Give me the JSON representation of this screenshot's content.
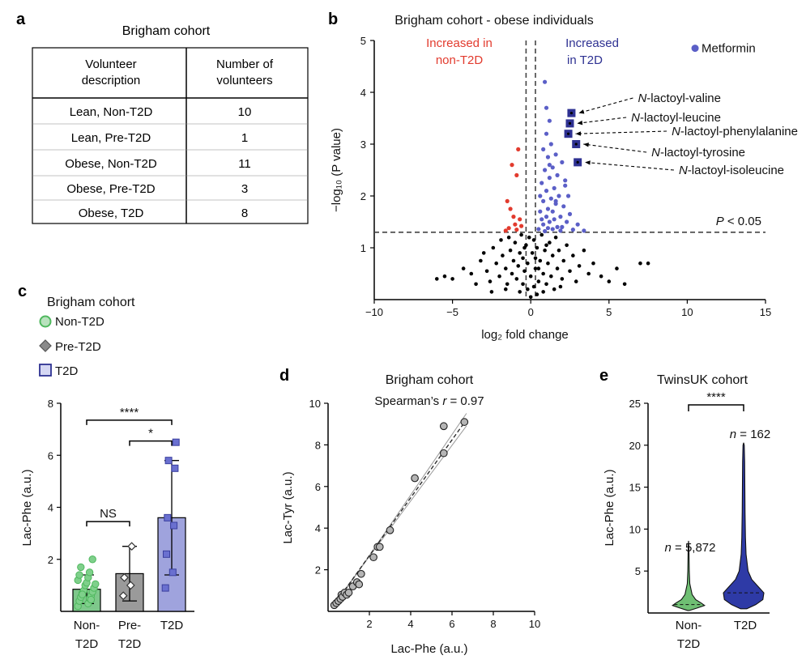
{
  "panels": {
    "a": {
      "label": "a",
      "title": "Brigham cohort",
      "table": {
        "headers": [
          [
            "Volunteer",
            "description"
          ],
          [
            "Number of",
            "volunteers"
          ]
        ],
        "rows": [
          [
            "Lean, Non-T2D",
            "10"
          ],
          [
            "Lean, Pre-T2D",
            "1"
          ],
          [
            "Obese, Non-T2D",
            "11"
          ],
          [
            "Obese, Pre-T2D",
            "3"
          ],
          [
            "Obese, T2D",
            "8"
          ]
        ]
      }
    },
    "b": {
      "label": "b"
    },
    "c": {
      "label": "c"
    },
    "d": {
      "label": "d"
    },
    "e": {
      "label": "e"
    }
  },
  "chart_data": [
    {
      "id": "b",
      "type": "scatter",
      "title": "Brigham cohort - obese individuals",
      "xlabel": "log₂ fold change",
      "ylabel": "−log₁₀ (P value)",
      "xlim": [
        -10,
        15
      ],
      "ylim": [
        0,
        5
      ],
      "xticks": [
        "−10",
        "−5",
        "0",
        "5",
        "10",
        "15"
      ],
      "xtick_values": [
        -10,
        -5,
        0,
        5,
        10,
        15
      ],
      "yticks": [
        "1",
        "2",
        "3",
        "4",
        "5"
      ],
      "ytick_values": [
        1,
        2,
        3,
        4,
        5
      ],
      "threshold_label": "P < 0.05",
      "threshold_y": 1.3,
      "vlines_x": [
        -0.3,
        0.3
      ],
      "region_labels": {
        "left": [
          "Increased in",
          "non-T2D"
        ],
        "right": [
          "Increased",
          "in T2D"
        ]
      },
      "legend": "Metformin",
      "colors": {
        "ns": "#000000",
        "up_t2d": "#5b5fc7",
        "up_nont2d": "#e23b2e",
        "highlight": "#2e3192"
      },
      "highlighted": [
        {
          "name": "N-lactoyl-valine",
          "prefix": "N",
          "rest": "-lactoyl-valine",
          "x": 2.6,
          "y": 3.6
        },
        {
          "name": "N-lactoyl-leucine",
          "prefix": "N",
          "rest": "-lactoyl-leucine",
          "x": 2.5,
          "y": 3.4
        },
        {
          "name": "N-lactoyl-phenylalanine",
          "prefix": "N",
          "rest": "-lactoyl-phenylalanine",
          "x": 2.4,
          "y": 3.2
        },
        {
          "name": "N-lactoyl-tyrosine",
          "prefix": "N",
          "rest": "-lactoyl-tyrosine",
          "x": 2.9,
          "y": 3.0
        },
        {
          "name": "N-lactoyl-isoleucine",
          "prefix": "N",
          "rest": "-lactoyl-isoleucine",
          "x": 3.0,
          "y": 2.65
        }
      ],
      "metformin": {
        "x": 10.5,
        "y": 4.85
      },
      "points_up_t2d": [
        [
          0.9,
          4.2
        ],
        [
          1.0,
          3.7
        ],
        [
          1.2,
          3.45
        ],
        [
          1.0,
          3.2
        ],
        [
          1.3,
          3.0
        ],
        [
          0.8,
          2.9
        ],
        [
          1.6,
          2.8
        ],
        [
          1.1,
          2.75
        ],
        [
          2.0,
          2.65
        ],
        [
          1.4,
          2.55
        ],
        [
          0.9,
          2.5
        ],
        [
          1.7,
          2.4
        ],
        [
          1.2,
          2.35
        ],
        [
          2.2,
          2.3
        ],
        [
          0.7,
          2.25
        ],
        [
          1.5,
          2.15
        ],
        [
          1.0,
          2.1
        ],
        [
          1.8,
          2.0
        ],
        [
          2.4,
          2.0
        ],
        [
          1.3,
          1.95
        ],
        [
          0.8,
          1.9
        ],
        [
          1.6,
          1.85
        ],
        [
          2.1,
          1.8
        ],
        [
          1.1,
          1.75
        ],
        [
          1.4,
          1.7
        ],
        [
          0.6,
          1.7
        ],
        [
          2.5,
          1.65
        ],
        [
          1.9,
          1.6
        ],
        [
          1.0,
          1.6
        ],
        [
          0.7,
          1.55
        ],
        [
          1.5,
          1.55
        ],
        [
          2.3,
          1.5
        ],
        [
          1.2,
          1.5
        ],
        [
          3.0,
          1.45
        ],
        [
          0.8,
          1.45
        ],
        [
          1.7,
          1.4
        ],
        [
          2.0,
          1.4
        ],
        [
          1.1,
          1.38
        ],
        [
          1.4,
          1.36
        ],
        [
          0.5,
          1.36
        ],
        [
          2.7,
          1.35
        ],
        [
          1.9,
          1.33
        ],
        [
          3.4,
          1.33
        ],
        [
          0.9,
          1.32
        ],
        [
          1.6,
          1.9
        ],
        [
          1.2,
          2.6
        ],
        [
          0.6,
          2.0
        ],
        [
          2.2,
          2.2
        ]
      ],
      "points_up_nont2d": [
        [
          -0.8,
          2.9
        ],
        [
          -1.2,
          2.6
        ],
        [
          -0.9,
          2.4
        ],
        [
          -1.5,
          1.9
        ],
        [
          -1.3,
          1.75
        ],
        [
          -1.1,
          1.6
        ],
        [
          -0.7,
          1.55
        ],
        [
          -1.0,
          1.45
        ],
        [
          -0.6,
          1.42
        ],
        [
          -1.4,
          1.38
        ],
        [
          -0.9,
          1.35
        ],
        [
          -1.6,
          1.33
        ]
      ],
      "points_ns": [
        [
          -6.0,
          0.4
        ],
        [
          -5.5,
          0.45
        ],
        [
          -5.0,
          0.4
        ],
        [
          -4.3,
          0.6
        ],
        [
          -3.8,
          0.5
        ],
        [
          -3.5,
          0.3
        ],
        [
          -3.2,
          0.75
        ],
        [
          -3.0,
          0.9
        ],
        [
          -2.8,
          0.55
        ],
        [
          -2.6,
          0.35
        ],
        [
          -2.4,
          1.0
        ],
        [
          -2.2,
          0.7
        ],
        [
          -2.0,
          0.45
        ],
        [
          -1.9,
          1.15
        ],
        [
          -1.8,
          0.85
        ],
        [
          -1.6,
          0.6
        ],
        [
          -1.5,
          0.3
        ],
        [
          -1.4,
          1.2
        ],
        [
          -1.3,
          0.95
        ],
        [
          -1.2,
          0.5
        ],
        [
          -1.1,
          0.75
        ],
        [
          -1.0,
          1.1
        ],
        [
          -0.9,
          0.4
        ],
        [
          -0.8,
          0.65
        ],
        [
          -0.7,
          0.9
        ],
        [
          -0.6,
          1.25
        ],
        [
          -0.5,
          0.3
        ],
        [
          -0.5,
          0.8
        ],
        [
          -0.4,
          0.55
        ],
        [
          -0.3,
          1.05
        ],
        [
          -0.2,
          0.2
        ],
        [
          -0.2,
          0.7
        ],
        [
          -0.1,
          1.2
        ],
        [
          0.0,
          0.05
        ],
        [
          0.0,
          0.45
        ],
        [
          0.1,
          0.9
        ],
        [
          0.2,
          0.25
        ],
        [
          0.2,
          1.15
        ],
        [
          0.3,
          0.6
        ],
        [
          0.4,
          0.1
        ],
        [
          0.4,
          1.0
        ],
        [
          0.5,
          0.35
        ],
        [
          0.6,
          0.75
        ],
        [
          0.7,
          1.25
        ],
        [
          0.8,
          0.15
        ],
        [
          0.8,
          0.5
        ],
        [
          0.9,
          0.95
        ],
        [
          1.0,
          0.3
        ],
        [
          1.1,
          0.7
        ],
        [
          1.2,
          1.1
        ],
        [
          1.3,
          0.45
        ],
        [
          1.4,
          0.85
        ],
        [
          1.5,
          0.2
        ],
        [
          1.6,
          1.2
        ],
        [
          1.7,
          0.6
        ],
        [
          1.8,
          0.95
        ],
        [
          2.0,
          0.4
        ],
        [
          2.1,
          0.75
        ],
        [
          2.3,
          1.05
        ],
        [
          2.5,
          0.55
        ],
        [
          2.7,
          0.85
        ],
        [
          2.9,
          0.35
        ],
        [
          3.1,
          0.65
        ],
        [
          3.4,
          0.95
        ],
        [
          3.7,
          0.5
        ],
        [
          4.0,
          0.7
        ],
        [
          4.5,
          0.45
        ],
        [
          5.0,
          0.35
        ],
        [
          5.5,
          0.6
        ],
        [
          6.0,
          0.3
        ],
        [
          7.0,
          0.7
        ],
        [
          7.5,
          0.7
        ],
        [
          -0.7,
          0.15
        ],
        [
          -1.6,
          0.2
        ],
        [
          0.5,
          0.6
        ],
        [
          1.9,
          0.25
        ],
        [
          -2.5,
          0.15
        ],
        [
          0.3,
          0.8
        ],
        [
          -0.4,
          1.0
        ],
        [
          1.0,
          1.05
        ]
      ]
    },
    {
      "id": "c",
      "type": "bar",
      "title": "Brigham cohort",
      "ylabel": "Lac-Phe (a.u.)",
      "ylim": [
        0,
        8
      ],
      "yticks": [
        "2",
        "4",
        "6",
        "8"
      ],
      "ytick_values": [
        2,
        4,
        6,
        8
      ],
      "legend": [
        "Non-T2D",
        "Pre-T2D",
        "T2D"
      ],
      "categories": [
        [
          "Non-",
          "T2D"
        ],
        [
          "Pre-",
          "T2D"
        ],
        [
          "T2D"
        ]
      ],
      "means": [
        0.85,
        1.45,
        3.6
      ],
      "sd": [
        0.55,
        1.05,
        2.2
      ],
      "colors": [
        "#7ec88b",
        "#9a9a9a",
        "#9fa3dd"
      ],
      "marker_colors": [
        "#4fb85e",
        "#8a8a8a",
        "#5c62c4"
      ],
      "points": [
        [
          0.2,
          0.3,
          0.4,
          0.5,
          0.55,
          0.6,
          0.7,
          0.75,
          0.8,
          0.9,
          1.0,
          1.05,
          1.1,
          1.2,
          1.3,
          1.4,
          1.5,
          1.7,
          0.45,
          0.65,
          2.0
        ],
        [
          0.6,
          1.0,
          1.3,
          2.5
        ],
        [
          0.9,
          1.5,
          2.2,
          3.3,
          3.6,
          5.5,
          5.8,
          6.5
        ]
      ],
      "significance": [
        {
          "pair": [
            0,
            2
          ],
          "label": "****",
          "y": 7.35
        },
        {
          "pair": [
            1,
            2
          ],
          "label": "*",
          "y": 6.55
        },
        {
          "pair": [
            0,
            1
          ],
          "label": "NS",
          "y": 3.45
        }
      ]
    },
    {
      "id": "d",
      "type": "scatter",
      "title": "Brigham cohort",
      "annotation_prefix": "Spearman’s ",
      "annotation_var": "r",
      "annotation_suffix": " = 0.97",
      "xlabel": "Lac-Phe (a.u.)",
      "ylabel": "Lac-Tyr (a.u.)",
      "xlim": [
        0,
        10
      ],
      "ylim": [
        0,
        10
      ],
      "xticks": [
        "2",
        "4",
        "6",
        "8",
        "10"
      ],
      "xtick_values": [
        2,
        4,
        6,
        8,
        10
      ],
      "yticks": [
        "2",
        "4",
        "6",
        "8",
        "10"
      ],
      "ytick_values": [
        2,
        4,
        6,
        8,
        10
      ],
      "fit": {
        "slope": 1.39,
        "intercept": -0.1
      },
      "x": [
        0.3,
        0.4,
        0.5,
        0.6,
        0.65,
        0.7,
        0.8,
        0.9,
        1.0,
        1.2,
        1.4,
        1.5,
        1.6,
        2.2,
        2.4,
        2.5,
        3.0,
        4.2,
        5.6,
        5.6,
        6.6
      ],
      "y": [
        0.3,
        0.4,
        0.5,
        0.6,
        0.8,
        0.7,
        0.9,
        0.8,
        0.9,
        1.2,
        1.4,
        1.3,
        1.8,
        2.6,
        3.1,
        3.1,
        3.9,
        6.4,
        7.6,
        8.9,
        9.1
      ]
    },
    {
      "id": "e",
      "type": "violin",
      "title": "TwinsUK cohort",
      "ylabel": "Lac-Phe (a.u.)",
      "ylim": [
        0,
        25
      ],
      "yticks": [
        "5",
        "10",
        "15",
        "20",
        "25"
      ],
      "ytick_values": [
        5,
        10,
        15,
        20,
        25
      ],
      "categories": [
        [
          "Non-",
          "T2D"
        ],
        [
          "T2D"
        ]
      ],
      "n_var": "n",
      "n_values": [
        " = 5,872",
        " = 162"
      ],
      "medians": [
        1.0,
        2.4
      ],
      "significance": "****",
      "colors": [
        "#6fbf73",
        "#2e3aa6"
      ],
      "profiles": [
        [
          [
            0.3,
            0.05
          ],
          [
            0.6,
            0.5
          ],
          [
            0.9,
            0.9
          ],
          [
            1.2,
            0.7
          ],
          [
            1.6,
            0.4
          ],
          [
            2.2,
            0.2
          ],
          [
            3.5,
            0.07
          ],
          [
            5,
            0.04
          ],
          [
            8,
            0.02
          ],
          [
            8.6,
            0.0
          ]
        ],
        [
          [
            0.5,
            0.15
          ],
          [
            1.0,
            0.6
          ],
          [
            1.6,
            0.95
          ],
          [
            2.4,
            1.0
          ],
          [
            3.2,
            0.7
          ],
          [
            4.0,
            0.4
          ],
          [
            5.0,
            0.22
          ],
          [
            7.0,
            0.12
          ],
          [
            9.0,
            0.09
          ],
          [
            12,
            0.07
          ],
          [
            15,
            0.06
          ],
          [
            18,
            0.05
          ],
          [
            20,
            0.03
          ],
          [
            20.3,
            0.0
          ]
        ]
      ]
    }
  ]
}
